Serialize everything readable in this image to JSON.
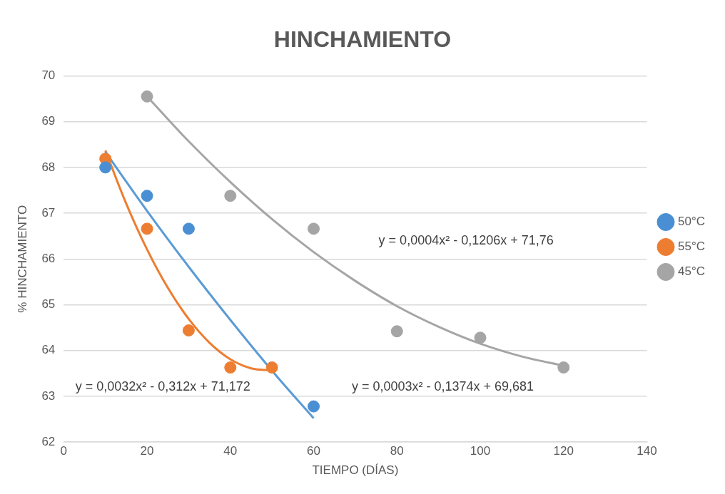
{
  "chart_data": {
    "type": "scatter",
    "title": "HINCHAMIENTO",
    "xlabel": "TIEMPO (DÍAS)",
    "ylabel": "% HINCHAMIENTO",
    "xlim": [
      0,
      140
    ],
    "xticks": [
      0,
      20,
      40,
      60,
      80,
      100,
      120,
      140
    ],
    "ylim": [
      62,
      70
    ],
    "yticks": [
      62,
      63,
      64,
      65,
      66,
      67,
      68,
      69,
      70
    ],
    "grid": "y",
    "legend": "right",
    "marker": "circle",
    "series": [
      {
        "name": "50°C",
        "color": "#4a8fd4",
        "x": [
          10,
          20,
          30,
          60
        ],
        "values": [
          68.0,
          67.38,
          66.66,
          62.78
        ]
      },
      {
        "name": "55°C",
        "color": "#ed7d31",
        "x": [
          10,
          20,
          30,
          40,
          50
        ],
        "values": [
          68.19,
          66.66,
          64.44,
          63.63,
          63.63
        ]
      },
      {
        "name": "45°C",
        "color": "#a5a5a5",
        "x": [
          20,
          40,
          60,
          80,
          100,
          120
        ],
        "values": [
          69.55,
          67.38,
          66.66,
          64.42,
          64.28,
          63.63
        ]
      },
      {
        "type": "line",
        "marker": "none",
        "color": "#5b9bd5",
        "x": [
          10,
          20,
          30,
          40,
          50,
          60
        ],
        "values": [
          68.34,
          67.05,
          65.83,
          64.67,
          63.56,
          62.52
        ]
      },
      {
        "type": "line",
        "marker": "none",
        "color": "#ed7d31",
        "x": [
          10,
          15,
          20,
          25,
          30,
          35,
          40,
          45,
          50
        ],
        "values": [
          68.37,
          67.21,
          66.21,
          65.37,
          64.69,
          64.17,
          63.81,
          63.61,
          63.57
        ]
      },
      {
        "type": "line",
        "marker": "none",
        "color": "#a5a5a5",
        "x": [
          20,
          30,
          40,
          50,
          60,
          70,
          80,
          90,
          100,
          110,
          120
        ],
        "values": [
          69.55,
          68.57,
          67.68,
          66.87,
          66.15,
          65.52,
          64.97,
          64.52,
          64.15,
          63.87,
          63.67
        ]
      }
    ],
    "annotations": [
      "y = 0,0004x² - 0,1206x + 71,76",
      "y = 0,0032x² - 0,312x + 71,172",
      "y = 0,0003x² - 0,1374x + 69,681"
    ]
  }
}
